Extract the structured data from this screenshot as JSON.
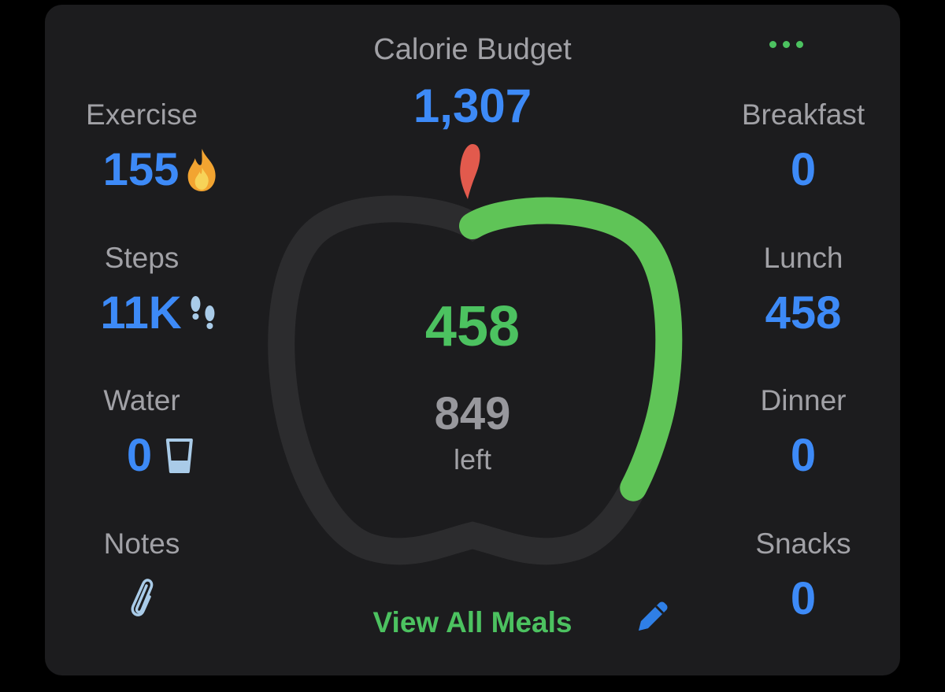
{
  "header": {
    "title": "Calorie Budget",
    "budget_value": "1,307"
  },
  "left_stats": [
    {
      "label": "Exercise",
      "value": "155",
      "icon": "flame-icon"
    },
    {
      "label": "Steps",
      "value": "11K",
      "icon": "footprints-icon"
    },
    {
      "label": "Water",
      "value": "0",
      "icon": "glass-icon"
    },
    {
      "label": "Notes",
      "icon": "paperclip-icon"
    }
  ],
  "right_stats": [
    {
      "label": "Breakfast",
      "value": "0"
    },
    {
      "label": "Lunch",
      "value": "458"
    },
    {
      "label": "Dinner",
      "value": "0"
    },
    {
      "label": "Snacks",
      "value": "0"
    }
  ],
  "ring": {
    "consumed": "458",
    "remaining": "849",
    "remaining_label": "left",
    "progress_fraction": 0.35
  },
  "footer": {
    "view_all_label": "View All Meals",
    "edit_icon": "pencil-icon"
  },
  "colors": {
    "accent_blue": "#3d8af7",
    "accent_green": "#4cc260",
    "stem_red": "#e25a4d",
    "track_gray": "#2c2c2e",
    "card_bg": "#1c1c1e",
    "label_gray": "#a1a1a6"
  }
}
